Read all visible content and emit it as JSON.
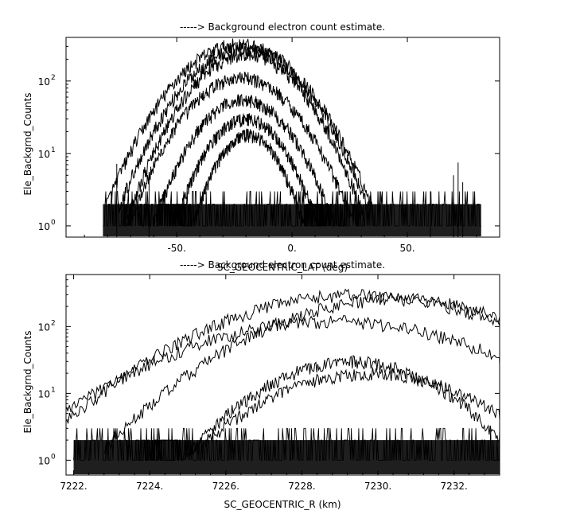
{
  "chart_data": [
    {
      "type": "line",
      "title": "-----> Background electron count estimate.",
      "xlabel": "SC_GEOCENTRIC_LAT (deg)",
      "ylabel": "Ele_Backgrnd_Counts",
      "xlim": [
        -98,
        90
      ],
      "ylim": [
        0.7,
        400
      ],
      "yscale": "log",
      "x_ticks": [
        -50,
        0,
        50
      ],
      "x_tick_labels": [
        "-50.",
        "0.",
        "50."
      ],
      "y_ticks": [
        1,
        10,
        100
      ],
      "y_tick_labels": [
        "10",
        "10",
        "10"
      ],
      "y_tick_exponents": [
        "0",
        "1",
        "2"
      ],
      "grid": false,
      "data_range": [
        -82,
        82
      ],
      "noise_baseline": [
        1,
        3
      ],
      "spikes": [
        {
          "x": -76,
          "y": 7.2
        },
        {
          "x": -62,
          "y": 5
        },
        {
          "x": 60,
          "y": 3
        },
        {
          "x": 70,
          "y": 5
        },
        {
          "x": 72,
          "y": 7.5
        },
        {
          "x": 74,
          "y": 4
        }
      ],
      "series": [
        {
          "center": -23,
          "width": 18,
          "peak": 320
        },
        {
          "center": -21,
          "width": 17,
          "peak": 280
        },
        {
          "center": -20,
          "width": 16,
          "peak": 230
        },
        {
          "center": -22,
          "width": 16,
          "peak": 110
        },
        {
          "center": -21,
          "width": 14,
          "peak": 55
        },
        {
          "center": -20,
          "width": 12,
          "peak": 30
        },
        {
          "center": -19,
          "width": 10,
          "peak": 18
        }
      ]
    },
    {
      "type": "line",
      "title": "-----> Background electron count estimate.",
      "xlabel": "SC_GEOCENTRIC_R (km)",
      "ylabel": "Ele_Backgrnd_Counts",
      "xlim": [
        7221.8,
        7233.2
      ],
      "ylim": [
        0.6,
        600
      ],
      "yscale": "log",
      "x_ticks": [
        7222,
        7224,
        7226,
        7228,
        7230,
        7232
      ],
      "x_tick_labels": [
        "7222.",
        "7224.",
        "7226.",
        "7228.",
        "7230.",
        "7232."
      ],
      "y_ticks": [
        1,
        10,
        100
      ],
      "y_tick_labels": [
        "10",
        "10",
        "10"
      ],
      "y_tick_exponents": [
        "0",
        "1",
        "2"
      ],
      "grid": false,
      "data_range": [
        7222.0,
        7233.2
      ],
      "noise_baseline": [
        1,
        3
      ],
      "series": [
        {
          "center": 7229.5,
          "width": 2.6,
          "peak": 300
        },
        {
          "center": 7230.5,
          "width": 2.4,
          "peak": 260
        },
        {
          "center": 7228.8,
          "width": 2.8,
          "peak": 120
        },
        {
          "center": 7229.3,
          "width": 1.7,
          "peak": 30
        },
        {
          "center": 7229.8,
          "width": 2.0,
          "peak": 20
        }
      ]
    }
  ]
}
